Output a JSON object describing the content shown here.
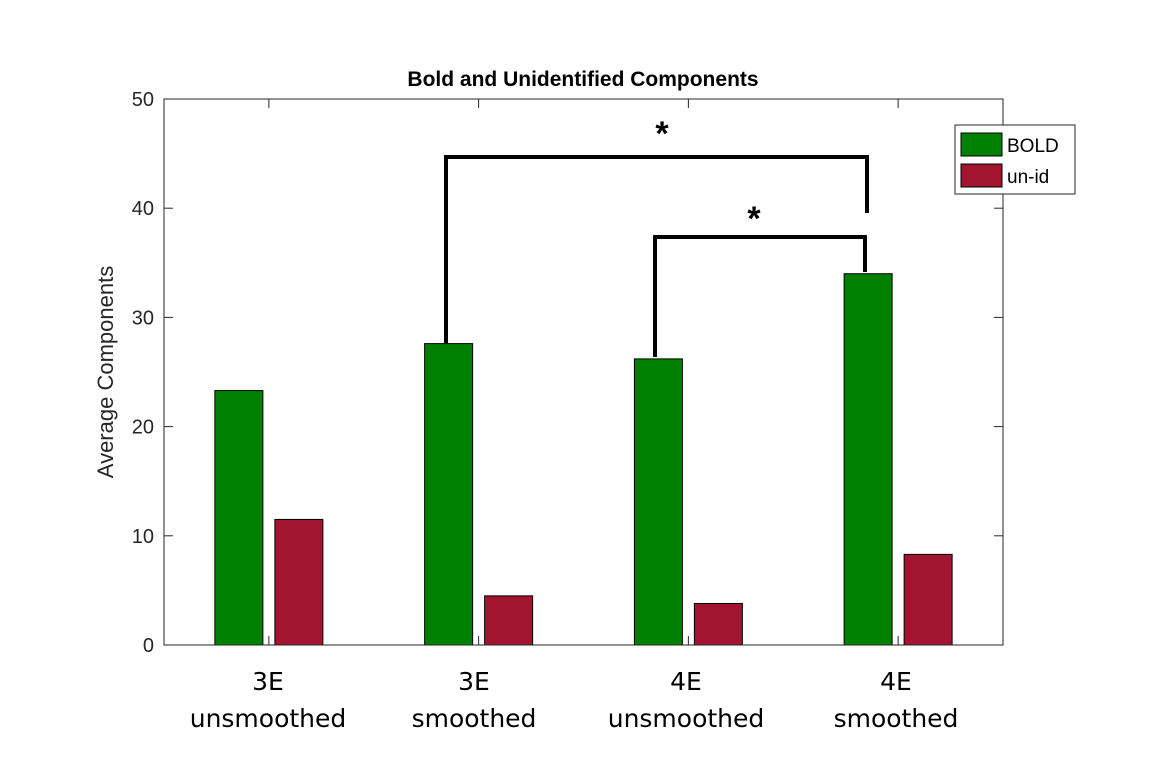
{
  "chart_data": {
    "type": "bar",
    "title": "Bold and Unidentified Components",
    "ylabel": "Average Components",
    "xlabel": "",
    "ylim": [
      0,
      50
    ],
    "yticks": [
      "0",
      "10",
      "20",
      "30",
      "40",
      "50"
    ],
    "categories": [
      [
        "3E",
        "unsmoothed"
      ],
      [
        "3E",
        "smoothed"
      ],
      [
        "4E",
        "unsmoothed"
      ],
      [
        "4E",
        "smoothed"
      ]
    ],
    "series": [
      {
        "name": "BOLD",
        "color": "#008000",
        "values": [
          23.3,
          27.6,
          26.2,
          34.0
        ]
      },
      {
        "name": "un-id",
        "color": "#A2142F",
        "values": [
          11.5,
          4.5,
          3.8,
          8.3
        ]
      }
    ],
    "legend_position": "top-right",
    "grid": false,
    "significance": [
      {
        "from_category": 1,
        "to_category": 3,
        "label": "*"
      },
      {
        "from_category": 2,
        "to_category": 3,
        "label": "*"
      }
    ]
  }
}
